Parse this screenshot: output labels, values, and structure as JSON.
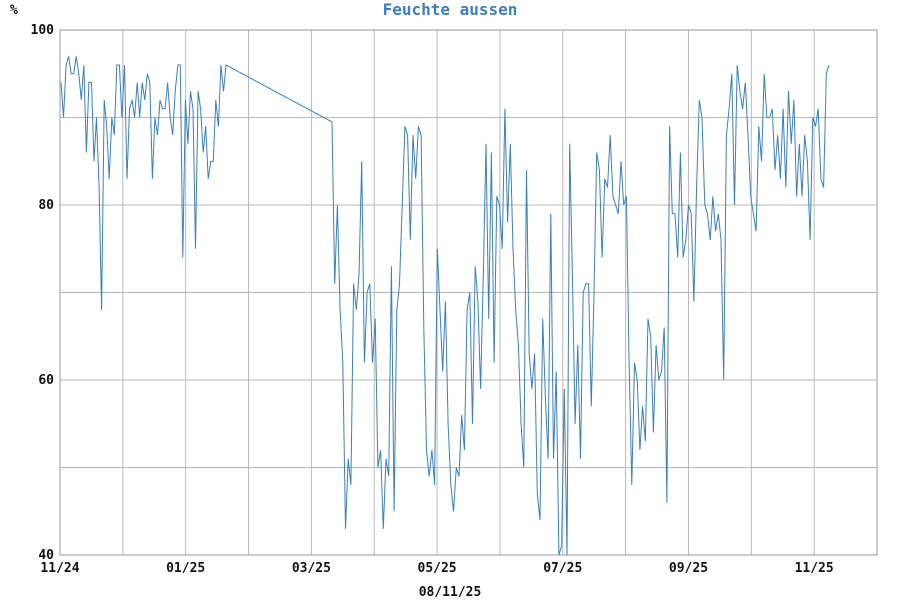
{
  "chart_data": {
    "type": "line",
    "title": "Feuchte aussen",
    "ylabel": "%",
    "xlabel": "08/11/25",
    "ylim": [
      40,
      100
    ],
    "y_ticks": [
      "40",
      "60",
      "80",
      "100"
    ],
    "x_ticks": [
      "11/24",
      "01/25",
      "03/25",
      "05/25",
      "07/25",
      "09/25",
      "11/25"
    ],
    "grid": true,
    "colors": {
      "series": "#3a7fbf",
      "title": "#3a7fbf",
      "grid": "#b8b8b8"
    },
    "series": [
      {
        "values": [
          94,
          90,
          96,
          97,
          95,
          95,
          97,
          95,
          92,
          96,
          86,
          94,
          94,
          85,
          90,
          82,
          68,
          92,
          89,
          83,
          90,
          88,
          96,
          96,
          90,
          96,
          83,
          91,
          92,
          90,
          94,
          90,
          94,
          92,
          95,
          94,
          83,
          90,
          88,
          92,
          91,
          91,
          94,
          90,
          88,
          93,
          96,
          96,
          74,
          92,
          87,
          93,
          91,
          75,
          93,
          91,
          86,
          89,
          83,
          85,
          85,
          92,
          89,
          96,
          93,
          96,
          89.5,
          71,
          80,
          68,
          62,
          43,
          51,
          48,
          71,
          68,
          72,
          85,
          62,
          70,
          71,
          62,
          67,
          50,
          52,
          43,
          51,
          49,
          73,
          45,
          68,
          71,
          80,
          89,
          88,
          76,
          88,
          83,
          89,
          88,
          66,
          52,
          49,
          52,
          48,
          75,
          68,
          61,
          69,
          55,
          48,
          45,
          50,
          49,
          56,
          52,
          68,
          70,
          55,
          73,
          69,
          59,
          72,
          87,
          67,
          86,
          62,
          81,
          80,
          75,
          91,
          78,
          87,
          75,
          68,
          64,
          55,
          50,
          84,
          63,
          59,
          63,
          47,
          44,
          67,
          58,
          51,
          79,
          51,
          61,
          40,
          41,
          59,
          40,
          87,
          72,
          55,
          64,
          51,
          70,
          71,
          71,
          57,
          70,
          86,
          84,
          74,
          83,
          82,
          88,
          81,
          80,
          79,
          85,
          80,
          81,
          62,
          48,
          62,
          60,
          52,
          57,
          53,
          67,
          65,
          54,
          64,
          60,
          61,
          66,
          46,
          89,
          79,
          79,
          74,
          86,
          74,
          76,
          80,
          79,
          69,
          82,
          92,
          90,
          80,
          79,
          76,
          81,
          77,
          79,
          76,
          60,
          88,
          91,
          95,
          80,
          96,
          93,
          91,
          94,
          88,
          81,
          79,
          77,
          89,
          85,
          95,
          90,
          90,
          91,
          84,
          88,
          83,
          91,
          82,
          93,
          87,
          92,
          81,
          87,
          81,
          88,
          85,
          76,
          90,
          89,
          91,
          83,
          82,
          95,
          96
        ]
      }
    ]
  }
}
